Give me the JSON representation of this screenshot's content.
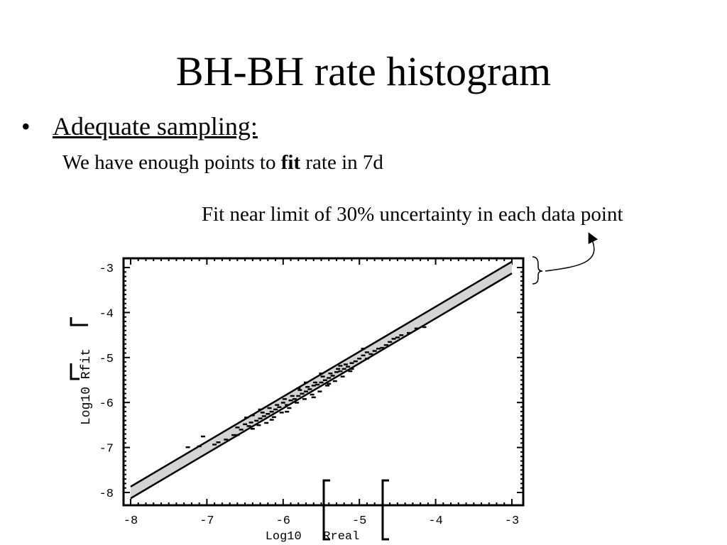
{
  "slide": {
    "title": "BH-BH rate histogram",
    "bullet": "Adequate sampling:",
    "sub_prefix": "We have enough points to ",
    "sub_bold": "fit",
    "sub_suffix": " rate in 7d",
    "annotation": "Fit near limit of 30% uncertainty in each data point"
  },
  "chart_data": {
    "type": "scatter",
    "title": "",
    "xlabel": "Log10   Rreal",
    "ylabel": "Log10 Rfit",
    "xlim": [
      -8,
      -3
    ],
    "ylim": [
      -8,
      -3
    ],
    "x_ticks": [
      "-8",
      "-7",
      "-6",
      "-5",
      "-4",
      "-3"
    ],
    "y_ticks": [
      "-3",
      "-4",
      "-5",
      "-6",
      "-7",
      "-8"
    ],
    "band": {
      "upper": [
        [
          -8,
          -7.87
        ],
        [
          -7,
          -6.87
        ],
        [
          -6,
          -5.87
        ],
        [
          -5,
          -4.87
        ],
        [
          -4,
          -3.87
        ],
        [
          -3,
          -2.87
        ]
      ],
      "lower": [
        [
          -8,
          -8.13
        ],
        [
          -7,
          -7.13
        ],
        [
          -6,
          -6.13
        ],
        [
          -5,
          -5.13
        ],
        [
          -4,
          -4.13
        ],
        [
          -3,
          -3.13
        ]
      ],
      "fill": "#d4d4d4"
    },
    "points": [
      [
        -7.25,
        -6.99
      ],
      [
        -7.1,
        -6.97
      ],
      [
        -7.05,
        -6.75
      ],
      [
        -6.9,
        -6.93
      ],
      [
        -6.85,
        -6.88
      ],
      [
        -6.75,
        -6.82
      ],
      [
        -6.65,
        -6.72
      ],
      [
        -6.6,
        -6.55
      ],
      [
        -6.55,
        -6.6
      ],
      [
        -6.5,
        -6.48
      ],
      [
        -6.48,
        -6.33
      ],
      [
        -6.45,
        -6.52
      ],
      [
        -6.42,
        -6.44
      ],
      [
        -6.4,
        -6.28
      ],
      [
        -6.35,
        -6.4
      ],
      [
        -6.32,
        -6.5
      ],
      [
        -6.3,
        -6.35
      ],
      [
        -6.27,
        -6.22
      ],
      [
        -6.25,
        -6.3
      ],
      [
        -6.22,
        -6.45
      ],
      [
        -6.2,
        -6.25
      ],
      [
        -6.18,
        -6.12
      ],
      [
        -6.15,
        -6.2
      ],
      [
        -6.12,
        -6.32
      ],
      [
        -6.1,
        -6.15
      ],
      [
        -6.08,
        -6.05
      ],
      [
        -6.05,
        -6.1
      ],
      [
        -6.02,
        -6.22
      ],
      [
        -6.0,
        -6.0
      ],
      [
        -5.98,
        -5.92
      ],
      [
        -5.95,
        -6.05
      ],
      [
        -5.92,
        -6.12
      ],
      [
        -5.9,
        -5.95
      ],
      [
        -5.88,
        -5.85
      ],
      [
        -5.85,
        -5.92
      ],
      [
        -5.82,
        -6.0
      ],
      [
        -5.8,
        -5.85
      ],
      [
        -5.78,
        -5.72
      ],
      [
        -5.75,
        -5.8
      ],
      [
        -5.72,
        -5.92
      ],
      [
        -5.7,
        -5.75
      ],
      [
        -5.68,
        -5.65
      ],
      [
        -5.65,
        -5.7
      ],
      [
        -5.62,
        -5.82
      ],
      [
        -5.6,
        -5.62
      ],
      [
        -5.58,
        -5.55
      ],
      [
        -5.55,
        -5.6
      ],
      [
        -5.52,
        -5.75
      ],
      [
        -5.5,
        -5.55
      ],
      [
        -5.48,
        -5.42
      ],
      [
        -5.45,
        -5.5
      ],
      [
        -5.42,
        -5.62
      ],
      [
        -5.4,
        -5.45
      ],
      [
        -5.38,
        -5.35
      ],
      [
        -5.35,
        -5.4
      ],
      [
        -5.32,
        -5.52
      ],
      [
        -5.3,
        -5.32
      ],
      [
        -5.28,
        -5.25
      ],
      [
        -5.25,
        -5.3
      ],
      [
        -5.22,
        -5.42
      ],
      [
        -5.2,
        -5.25
      ],
      [
        -5.18,
        -5.15
      ],
      [
        -5.15,
        -5.2
      ],
      [
        -5.12,
        -5.3
      ],
      [
        -5.1,
        -5.12
      ],
      [
        -5.05,
        -5.08
      ],
      [
        -5.0,
        -5.02
      ],
      [
        -4.95,
        -4.95
      ],
      [
        -4.9,
        -4.88
      ],
      [
        -4.85,
        -4.92
      ],
      [
        -4.8,
        -4.85
      ],
      [
        -4.75,
        -4.8
      ],
      [
        -4.7,
        -4.78
      ],
      [
        -4.65,
        -4.72
      ],
      [
        -4.6,
        -4.65
      ],
      [
        -4.55,
        -4.58
      ],
      [
        -4.5,
        -4.55
      ],
      [
        -4.45,
        -4.5
      ],
      [
        -4.35,
        -4.45
      ],
      [
        -4.25,
        -4.35
      ],
      [
        -4.15,
        -4.32
      ],
      [
        -5.95,
        -6.2
      ],
      [
        -6.6,
        -6.72
      ],
      [
        -6.3,
        -6.15
      ],
      [
        -5.7,
        -5.55
      ],
      [
        -5.4,
        -5.58
      ],
      [
        -5.1,
        -5.25
      ],
      [
        -4.9,
        -5.02
      ],
      [
        -5.6,
        -5.88
      ],
      [
        -6.15,
        -6.38
      ],
      [
        -5.8,
        -5.68
      ],
      [
        -5.25,
        -5.18
      ],
      [
        -4.95,
        -4.8
      ],
      [
        -6.4,
        -6.58
      ],
      [
        -5.5,
        -5.35
      ]
    ],
    "grid": false
  }
}
